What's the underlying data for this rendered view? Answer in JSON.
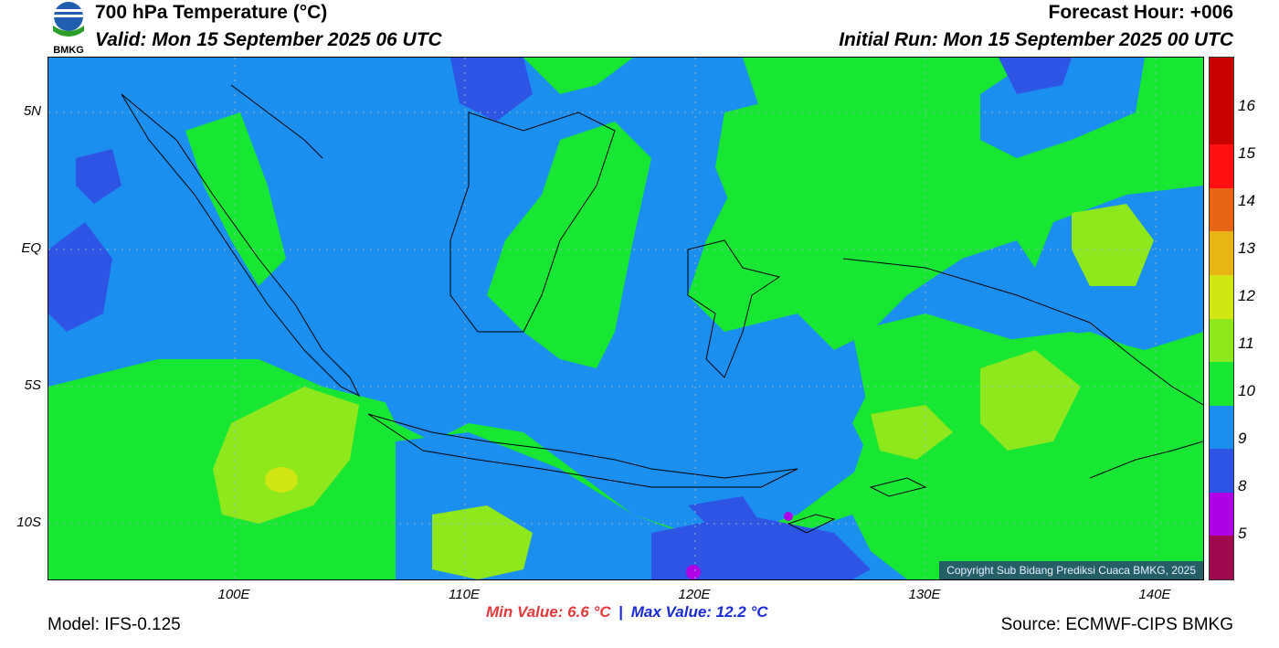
{
  "header": {
    "title": "700 hPa Temperature (°C)",
    "valid": "Valid: Mon 15 September 2025 06 UTC",
    "forecast_hour": "Forecast Hour: +006",
    "initial_run": "Initial Run: Mon 15 September 2025 00 UTC",
    "logo_text": "BMKG"
  },
  "map": {
    "lat_labels": [
      "5N",
      "EQ",
      "5S",
      "10S"
    ],
    "lon_labels": [
      "100E",
      "110E",
      "120E",
      "130E",
      "140E"
    ],
    "copyright": "Copyright Sub Bidang Prediksi Cuaca BMKG, 2025",
    "field_colors": {
      "base": "#17e632",
      "cool": "#1a8ff0",
      "cooler": "#2e54e6",
      "coolest": "#b000e8",
      "warm": "#8ee81c"
    }
  },
  "colorbar": {
    "labels": [
      "16",
      "15",
      "14",
      "13",
      "12",
      "11",
      "10",
      "9",
      "8",
      "5"
    ],
    "colors": [
      "#c80000",
      "#c80000",
      "#ff1010",
      "#e86414",
      "#e8b414",
      "#d2e614",
      "#8ee81c",
      "#17e632",
      "#1a8ff0",
      "#2e54e6",
      "#b000e8",
      "#a0084e"
    ]
  },
  "footer": {
    "min_value": "Min Value: 6.6 °C",
    "separator": "|",
    "max_value": "Max Value: 12.2 °C",
    "model": "Model: IFS-0.125",
    "source": "Source: ECMWF-CIPS BMKG"
  }
}
